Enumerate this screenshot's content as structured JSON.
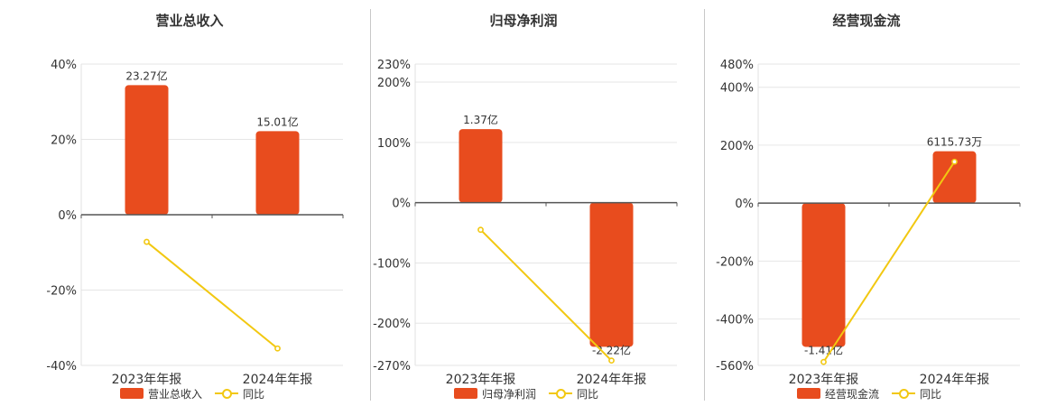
{
  "colors": {
    "bar": "#e84c1e",
    "line": "#f2c811",
    "axis": "#555555",
    "grid": "#e6e6e6"
  },
  "chart_data": [
    {
      "type": "bar",
      "title": "营业总收入",
      "categories": [
        "2023年年报",
        "2024年年报"
      ],
      "series": [
        {
          "name": "营业总收入",
          "type": "bar",
          "values": [
            23.27,
            15.01
          ],
          "labels": [
            "23.27亿",
            "15.01亿"
          ]
        },
        {
          "name": "同比",
          "type": "line",
          "values": [
            -7.2,
            -35.5
          ]
        }
      ],
      "ylim": [
        -40,
        40
      ],
      "yticks": [
        "40%",
        "20%",
        "0%",
        "-20%",
        "-40%"
      ],
      "legend": "bottom",
      "grid": true
    },
    {
      "type": "bar",
      "title": "归母净利润",
      "categories": [
        "2023年年报",
        "2024年年报"
      ],
      "series": [
        {
          "name": "归母净利润",
          "type": "bar",
          "values": [
            1.37,
            -2.22
          ],
          "labels": [
            "1.37亿",
            "-2.22亿"
          ]
        },
        {
          "name": "同比",
          "type": "line",
          "values": [
            -45,
            -262
          ]
        }
      ],
      "ylim": [
        -270,
        230
      ],
      "yticks": [
        "230%",
        "200%",
        "100%",
        "0%",
        "-100%",
        "-200%",
        "-270%"
      ],
      "legend": "bottom",
      "grid": true
    },
    {
      "type": "bar",
      "title": "经营现金流",
      "categories": [
        "2023年年报",
        "2024年年报"
      ],
      "series": [
        {
          "name": "经营现金流",
          "type": "bar",
          "values": [
            -1.41,
            0.6116
          ],
          "labels": [
            "-1.41亿",
            "6115.73万"
          ]
        },
        {
          "name": "同比",
          "type": "line",
          "values": [
            -548,
            143
          ]
        }
      ],
      "ylim": [
        -560,
        480
      ],
      "yticks": [
        "480%",
        "400%",
        "200%",
        "0%",
        "-200%",
        "-400%",
        "-560%"
      ],
      "legend": "bottom",
      "grid": true
    }
  ]
}
